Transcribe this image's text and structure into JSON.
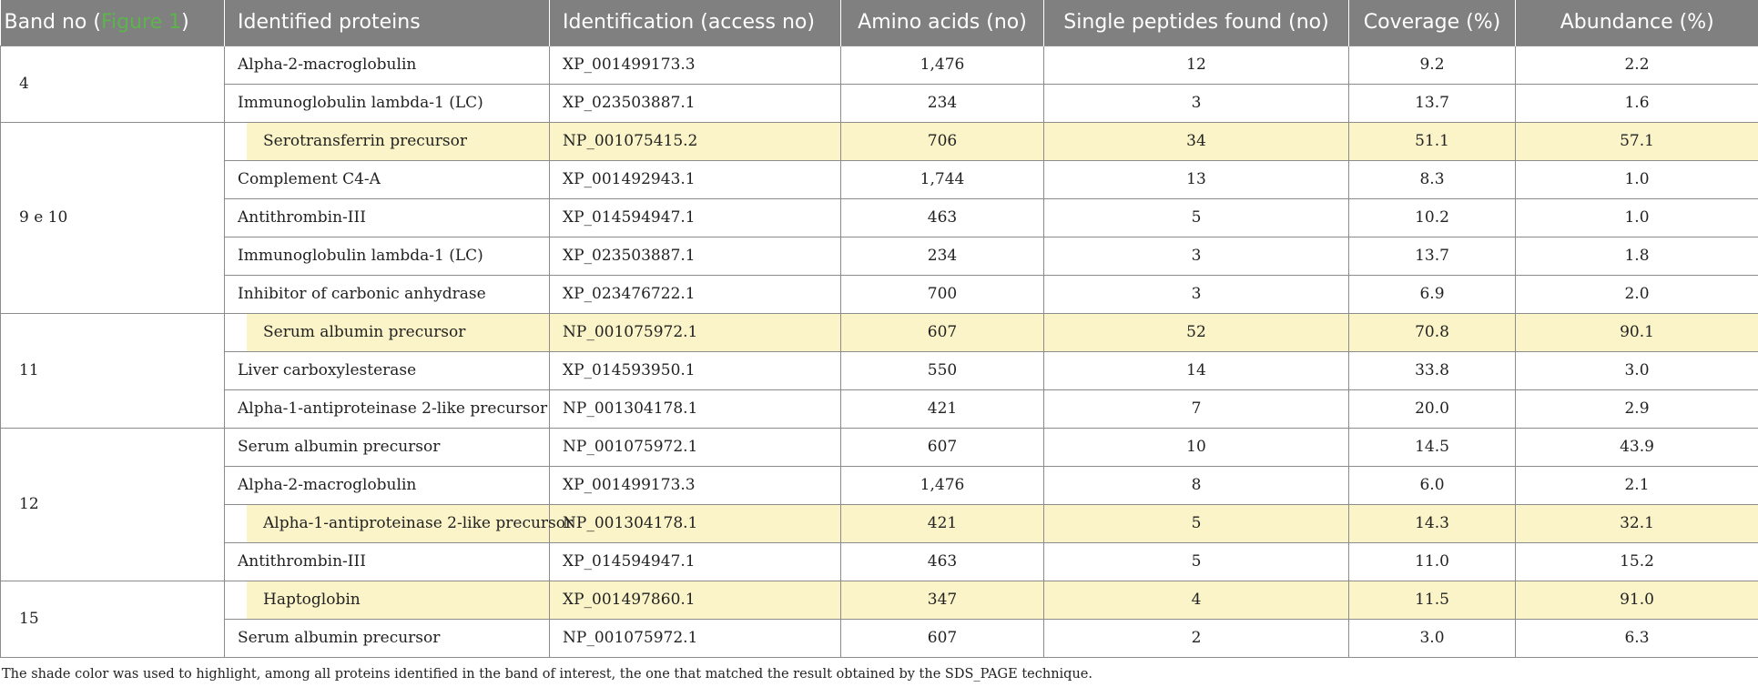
{
  "table": {
    "headers": {
      "band_prefix": "Band no (",
      "band_ref": "Figure 1",
      "band_suffix": ")",
      "protein": "Identified proteins",
      "access": "Identification (access no)",
      "amino": "Amino acids (no)",
      "peptides": "Single peptides found (no)",
      "coverage": "Coverage (%)",
      "abundance": "Abundance (%)"
    },
    "bands": [
      {
        "band": "4",
        "rows": [
          {
            "protein": "Alpha-2-macroglobulin",
            "access": "XP_001499173.3",
            "amino": "1,476",
            "peptides": "12",
            "coverage": "9.2",
            "abundance": "2.2",
            "highlight": false
          },
          {
            "protein": "Immunoglobulin lambda-1 (LC)",
            "access": "XP_023503887.1",
            "amino": "234",
            "peptides": "3",
            "coverage": "13.7",
            "abundance": "1.6",
            "highlight": false
          }
        ]
      },
      {
        "band": "9 e 10",
        "rows": [
          {
            "protein": "Serotransferrin precursor",
            "access": "NP_001075415.2",
            "amino": "706",
            "peptides": "34",
            "coverage": "51.1",
            "abundance": "57.1",
            "highlight": true
          },
          {
            "protein": "Complement C4-A",
            "access": "XP_001492943.1",
            "amino": "1,744",
            "peptides": "13",
            "coverage": "8.3",
            "abundance": "1.0",
            "highlight": false
          },
          {
            "protein": "Antithrombin-III",
            "access": "XP_014594947.1",
            "amino": "463",
            "peptides": "5",
            "coverage": "10.2",
            "abundance": "1.0",
            "highlight": false
          },
          {
            "protein": "Immunoglobulin lambda-1 (LC)",
            "access": "XP_023503887.1",
            "amino": "234",
            "peptides": "3",
            "coverage": "13.7",
            "abundance": "1.8",
            "highlight": false
          },
          {
            "protein": "Inhibitor of carbonic anhydrase",
            "access": "XP_023476722.1",
            "amino": "700",
            "peptides": "3",
            "coverage": "6.9",
            "abundance": "2.0",
            "highlight": false
          }
        ]
      },
      {
        "band": "11",
        "rows": [
          {
            "protein": "Serum albumin precursor",
            "access": "NP_001075972.1",
            "amino": "607",
            "peptides": "52",
            "coverage": "70.8",
            "abundance": "90.1",
            "highlight": true
          },
          {
            "protein": "Liver carboxylesterase",
            "access": "XP_014593950.1",
            "amino": "550",
            "peptides": "14",
            "coverage": "33.8",
            "abundance": "3.0",
            "highlight": false
          },
          {
            "protein": "Alpha-1-antiproteinase 2-like precursor",
            "access": "NP_001304178.1",
            "amino": "421",
            "peptides": "7",
            "coverage": "20.0",
            "abundance": "2.9",
            "highlight": false
          }
        ]
      },
      {
        "band": "12",
        "rows": [
          {
            "protein": "Serum albumin precursor",
            "access": "NP_001075972.1",
            "amino": "607",
            "peptides": "10",
            "coverage": "14.5",
            "abundance": "43.9",
            "highlight": false
          },
          {
            "protein": "Alpha-2-macroglobulin",
            "access": "XP_001499173.3",
            "amino": "1,476",
            "peptides": "8",
            "coverage": "6.0",
            "abundance": "2.1",
            "highlight": false
          },
          {
            "protein": "Alpha-1-antiproteinase 2-like precursor",
            "access": "NP_001304178.1",
            "amino": "421",
            "peptides": "5",
            "coverage": "14.3",
            "abundance": "32.1",
            "highlight": true
          },
          {
            "protein": "Antithrombin-III",
            "access": "XP_014594947.1",
            "amino": "463",
            "peptides": "5",
            "coverage": "11.0",
            "abundance": "15.2",
            "highlight": false
          }
        ]
      },
      {
        "band": "15",
        "rows": [
          {
            "protein": "Haptoglobin",
            "access": "XP_001497860.1",
            "amino": "347",
            "peptides": "4",
            "coverage": "11.5",
            "abundance": "91.0",
            "highlight": true
          },
          {
            "protein": "Serum albumin precursor",
            "access": "NP_001075972.1",
            "amino": "607",
            "peptides": "2",
            "coverage": "3.0",
            "abundance": "6.3",
            "highlight": false
          }
        ]
      }
    ]
  },
  "footnote": "The shade color was used to highlight, among all proteins identified in the band of interest, the one that matched the result obtained by the SDS_PAGE technique.",
  "colors": {
    "header_bg": "#808080",
    "highlight": "#fbf4c8",
    "figure_link": "#5db44d"
  }
}
